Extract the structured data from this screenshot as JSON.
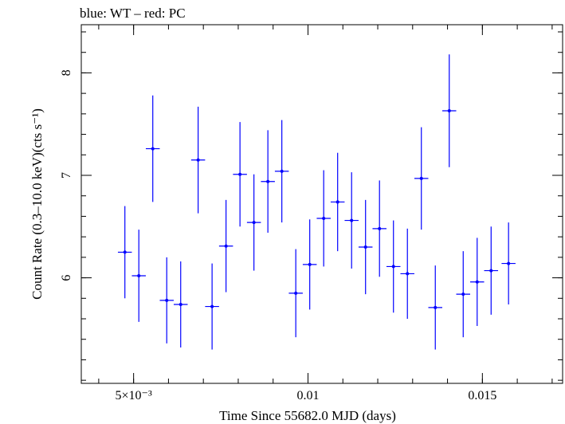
{
  "header": {
    "text": "blue: WT – red: PC"
  },
  "chart_data": {
    "type": "scatter",
    "title": "",
    "xlabel": "Time Since 55682.0 MJD (days)",
    "ylabel": "Count Rate (0.3–10.0 keV)(cts s⁻¹)",
    "xlim": [
      0.0035,
      0.0173
    ],
    "ylim": [
      4.97,
      8.47
    ],
    "xticks": [
      {
        "value": 0.005,
        "label": "5×10⁻³"
      },
      {
        "value": 0.01,
        "label": "0.01"
      },
      {
        "value": 0.015,
        "label": "0.015"
      }
    ],
    "yticks": [
      {
        "value": 6,
        "label": "6"
      },
      {
        "value": 7,
        "label": "7"
      },
      {
        "value": 8,
        "label": "8"
      }
    ],
    "grid": false,
    "series": [
      {
        "color": "#0000ff",
        "points": [
          {
            "x": 0.00475,
            "xerr": 0.0002,
            "y": 6.25,
            "yerr": 0.45
          },
          {
            "x": 0.00515,
            "xerr": 0.0002,
            "y": 6.02,
            "yerr": 0.45
          },
          {
            "x": 0.00555,
            "xerr": 0.0002,
            "y": 7.26,
            "yerr": 0.52
          },
          {
            "x": 0.00595,
            "xerr": 0.0002,
            "y": 5.78,
            "yerr": 0.42
          },
          {
            "x": 0.00635,
            "xerr": 0.0002,
            "y": 5.74,
            "yerr": 0.42
          },
          {
            "x": 0.00685,
            "xerr": 0.0002,
            "y": 7.15,
            "yerr": 0.52
          },
          {
            "x": 0.00725,
            "xerr": 0.0002,
            "y": 5.72,
            "yerr": 0.42
          },
          {
            "x": 0.00765,
            "xerr": 0.0002,
            "y": 6.31,
            "yerr": 0.45
          },
          {
            "x": 0.00805,
            "xerr": 0.0002,
            "y": 7.01,
            "yerr": 0.51
          },
          {
            "x": 0.00845,
            "xerr": 0.0002,
            "y": 6.54,
            "yerr": 0.47
          },
          {
            "x": 0.00885,
            "xerr": 0.0002,
            "y": 6.94,
            "yerr": 0.5
          },
          {
            "x": 0.00925,
            "xerr": 0.0002,
            "y": 7.04,
            "yerr": 0.5
          },
          {
            "x": 0.00965,
            "xerr": 0.0002,
            "y": 5.85,
            "yerr": 0.43
          },
          {
            "x": 0.01005,
            "xerr": 0.0002,
            "y": 6.13,
            "yerr": 0.44
          },
          {
            "x": 0.01045,
            "xerr": 0.0002,
            "y": 6.58,
            "yerr": 0.47
          },
          {
            "x": 0.01085,
            "xerr": 0.0002,
            "y": 6.74,
            "yerr": 0.48
          },
          {
            "x": 0.01125,
            "xerr": 0.0002,
            "y": 6.56,
            "yerr": 0.47
          },
          {
            "x": 0.01165,
            "xerr": 0.0002,
            "y": 6.3,
            "yerr": 0.46
          },
          {
            "x": 0.01205,
            "xerr": 0.0002,
            "y": 6.48,
            "yerr": 0.47
          },
          {
            "x": 0.01245,
            "xerr": 0.0002,
            "y": 6.11,
            "yerr": 0.45
          },
          {
            "x": 0.01285,
            "xerr": 0.0002,
            "y": 6.04,
            "yerr": 0.44
          },
          {
            "x": 0.01325,
            "xerr": 0.0002,
            "y": 6.97,
            "yerr": 0.5
          },
          {
            "x": 0.01365,
            "xerr": 0.0002,
            "y": 5.71,
            "yerr": 0.41
          },
          {
            "x": 0.01405,
            "xerr": 0.0002,
            "y": 7.63,
            "yerr": 0.55
          },
          {
            "x": 0.01445,
            "xerr": 0.0002,
            "y": 5.84,
            "yerr": 0.42
          },
          {
            "x": 0.01485,
            "xerr": 0.0002,
            "y": 5.96,
            "yerr": 0.43
          },
          {
            "x": 0.01525,
            "xerr": 0.0002,
            "y": 6.07,
            "yerr": 0.43
          },
          {
            "x": 0.01575,
            "xerr": 0.0002,
            "y": 6.14,
            "yerr": 0.4
          }
        ]
      }
    ]
  }
}
